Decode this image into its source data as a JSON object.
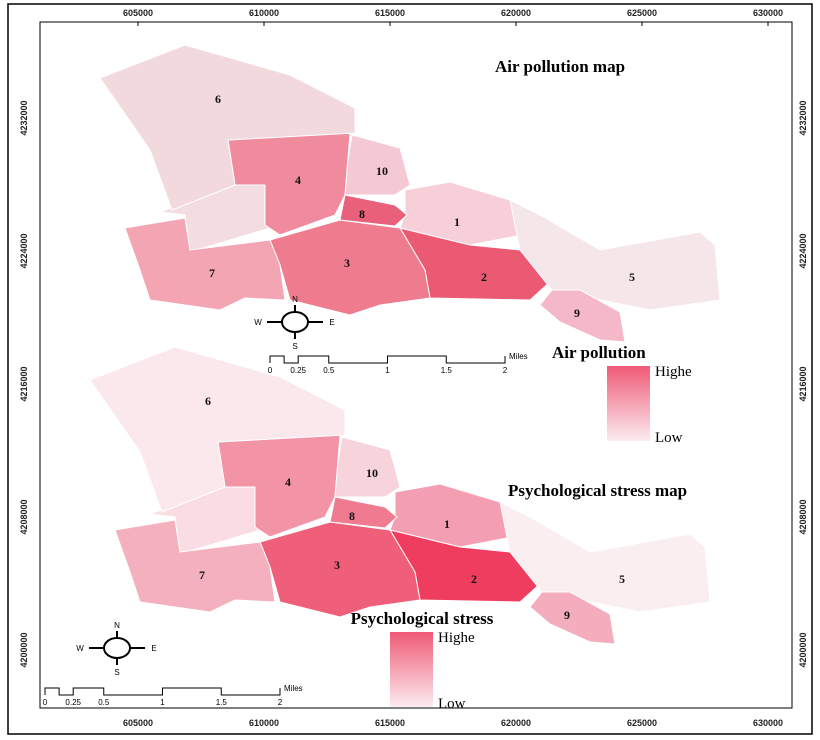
{
  "axes": {
    "x_labels": [
      "605000",
      "610000",
      "615000",
      "620000",
      "625000",
      "630000"
    ],
    "y_labels": [
      "4232000",
      "4224000",
      "4216000",
      "4208000",
      "4200000"
    ]
  },
  "maps": [
    {
      "title": "Air pollution map",
      "legend": {
        "title": "Air pollution",
        "high": "Highe",
        "low": "Low"
      },
      "districts": [
        "1",
        "2",
        "3",
        "4",
        "5",
        "6",
        "7",
        "8",
        "9",
        "10"
      ],
      "compass": {
        "n": "N",
        "s": "S",
        "e": "E",
        "w": "W"
      },
      "scale_bar": {
        "ticks": [
          "0",
          "0.25",
          "0.5",
          "1",
          "1.5",
          "2"
        ],
        "unit": "Miles"
      }
    },
    {
      "title": "Psychological stress  map",
      "legend": {
        "title": "Psychological stress",
        "high": "Highe",
        "low": "Low"
      },
      "districts": [
        "1",
        "2",
        "3",
        "4",
        "5",
        "6",
        "7",
        "8",
        "9",
        "10"
      ],
      "compass": {
        "n": "N",
        "s": "S",
        "e": "E",
        "w": "W"
      },
      "scale_bar": {
        "ticks": [
          "0",
          "0.25",
          "0.5",
          "1",
          "1.5",
          "2"
        ],
        "unit": "Miles"
      }
    }
  ]
}
